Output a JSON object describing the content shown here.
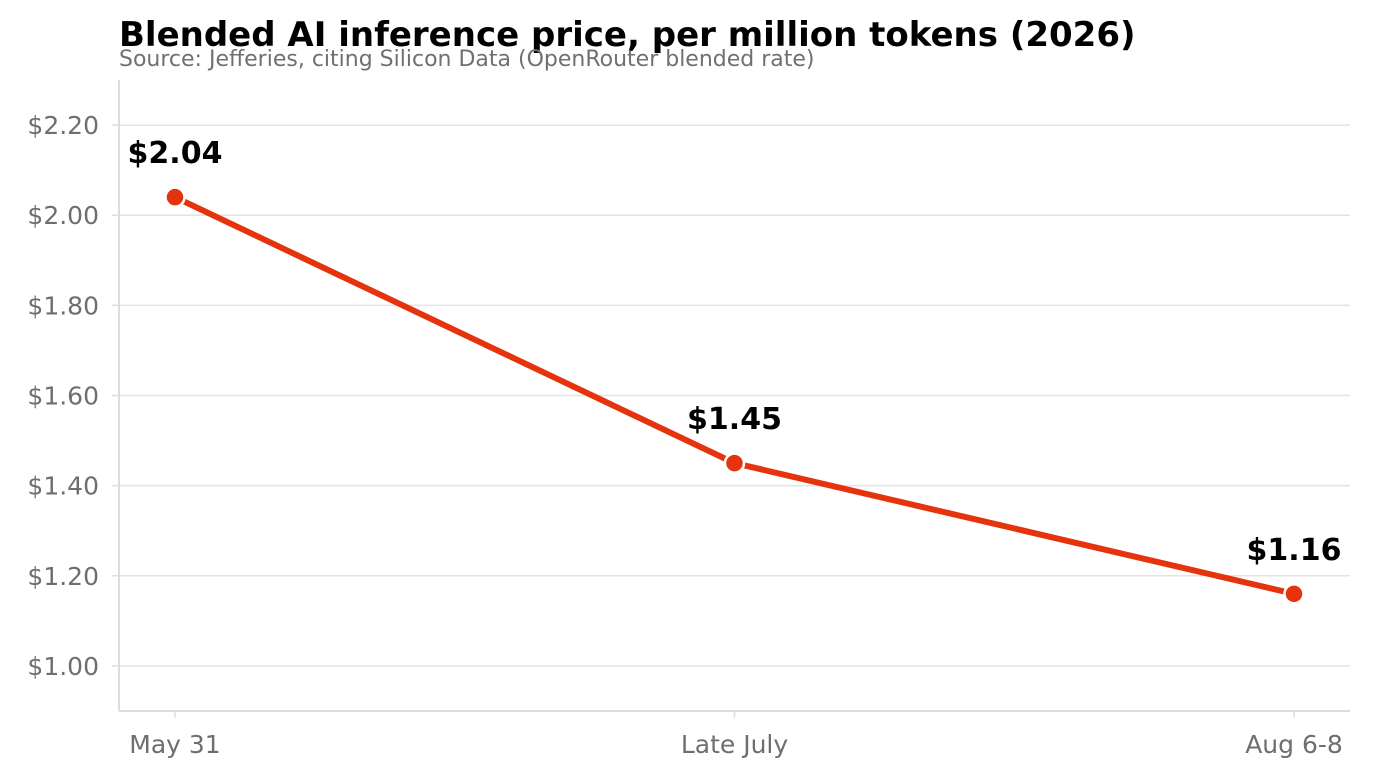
{
  "chart_data": {
    "type": "line",
    "title": "Blended AI inference price, per million tokens (2026)",
    "subtitle": "Source: Jefferies, citing Silicon Data (OpenRouter blended rate)",
    "xlabel": "",
    "ylabel": "",
    "categories": [
      "May 31",
      "Late July",
      "Aug 6-8"
    ],
    "series": [
      {
        "values": [
          2.04,
          1.45,
          1.16
        ],
        "data_labels": [
          "$2.04",
          "$1.45",
          "$1.16"
        ]
      }
    ],
    "ylim": [
      0.9,
      2.3
    ],
    "yticks": [
      1.0,
      1.2,
      1.4,
      1.6,
      1.8,
      2.0,
      2.2
    ],
    "ytick_labels": [
      "$1.00",
      "$1.20",
      "$1.40",
      "$1.60",
      "$1.80",
      "$2.00",
      "$2.20"
    ],
    "grid": "horizontal",
    "line_color": "#e5330e",
    "grid_color": "#e3e3e3",
    "axis_color": "#dddddd",
    "tick_label_color": "#6e6e6e"
  }
}
